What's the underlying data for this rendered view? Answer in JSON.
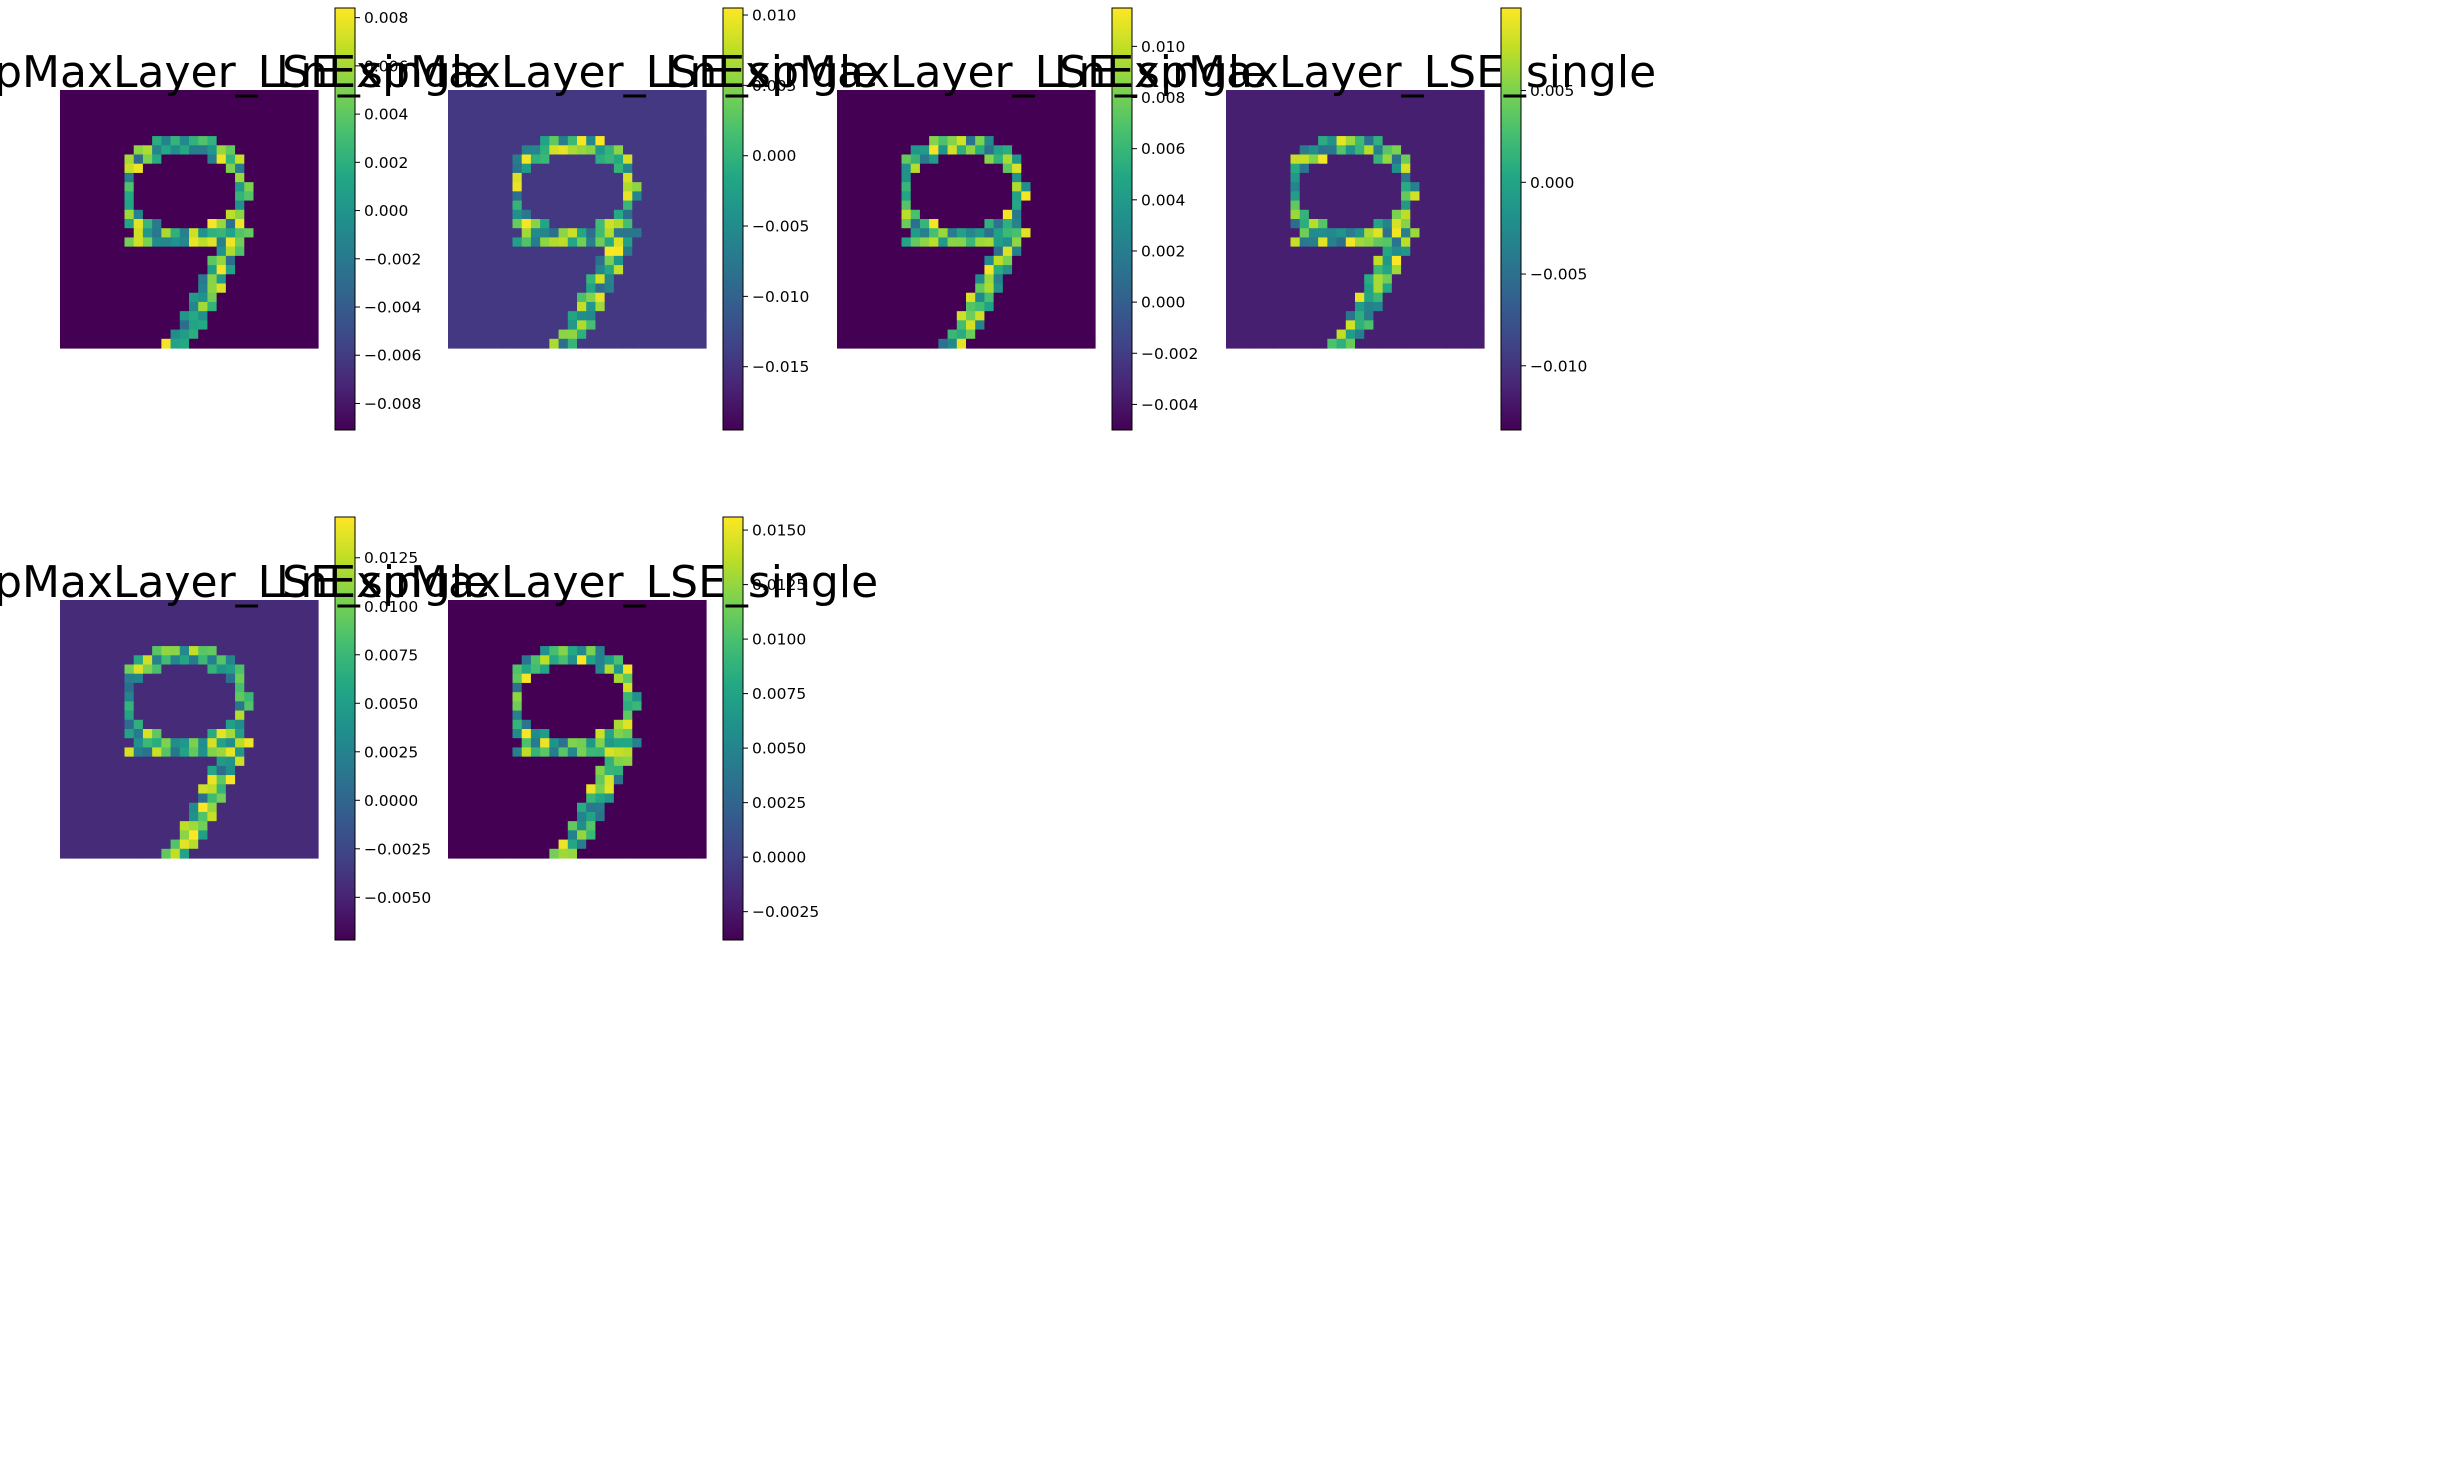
{
  "chart_data": [
    {
      "type": "heatmap",
      "title": "LnExpMaxLayer_LSE_single",
      "cmap": "viridis",
      "vmin": -0.0091,
      "vmax": 0.0084,
      "bg": -0.0091,
      "colorbar_ticks": [
        0.008,
        0.006,
        0.004,
        0.002,
        0.0,
        -0.002,
        -0.004,
        -0.006,
        -0.008
      ],
      "colorbar_labels": [
        "0.008",
        "0.006",
        "0.004",
        "0.002",
        "0.000",
        "−0.002",
        "−0.004",
        "−0.006",
        "−0.008"
      ]
    },
    {
      "type": "heatmap",
      "title": "LnExpMaxLayer_LSE_single",
      "cmap": "viridis",
      "vmin": -0.0195,
      "vmax": 0.0105,
      "bg": -0.0145,
      "colorbar_ticks": [
        0.01,
        0.005,
        0.0,
        -0.005,
        -0.01,
        -0.015
      ],
      "colorbar_labels": [
        "0.010",
        "0.005",
        "0.000",
        "−0.005",
        "−0.010",
        "−0.015"
      ]
    },
    {
      "type": "heatmap",
      "title": "LnExpMaxLayer_LSE_single",
      "cmap": "viridis",
      "vmin": -0.005,
      "vmax": 0.0115,
      "bg": -0.005,
      "colorbar_ticks": [
        0.01,
        0.008,
        0.006,
        0.004,
        0.002,
        0.0,
        -0.002,
        -0.004
      ],
      "colorbar_labels": [
        "0.010",
        "0.008",
        "0.006",
        "0.004",
        "0.002",
        "0.000",
        "−0.002",
        "−0.004"
      ]
    },
    {
      "type": "heatmap",
      "title": "LnExpMaxLayer_LSE_single",
      "cmap": "viridis",
      "vmin": -0.0135,
      "vmax": 0.0095,
      "bg": -0.0115,
      "colorbar_ticks": [
        0.005,
        0.0,
        -0.005,
        -0.01
      ],
      "colorbar_labels": [
        "0.005",
        "0.000",
        "−0.005",
        "−0.010"
      ]
    },
    {
      "type": "heatmap",
      "title": "LnExpMaxLayer_LSE_single",
      "cmap": "viridis",
      "vmin": -0.0072,
      "vmax": 0.0146,
      "bg": -0.0045,
      "colorbar_ticks": [
        0.0125,
        0.01,
        0.0075,
        0.005,
        0.0025,
        0.0,
        -0.0025,
        -0.005
      ],
      "colorbar_labels": [
        "0.0125",
        "0.0100",
        "0.0075",
        "0.0050",
        "0.0025",
        "0.0000",
        "−0.0025",
        "−0.0050"
      ]
    },
    {
      "type": "heatmap",
      "title": "LnExpMaxLayer_LSE_single",
      "cmap": "viridis",
      "vmin": -0.0038,
      "vmax": 0.0156,
      "bg": -0.0038,
      "colorbar_ticks": [
        0.015,
        0.0125,
        0.01,
        0.0075,
        0.005,
        0.0025,
        0.0,
        -0.0025
      ],
      "colorbar_labels": [
        "0.0150",
        "0.0125",
        "0.0100",
        "0.0075",
        "0.0050",
        "0.0025",
        "0.0000",
        "−0.0025"
      ]
    }
  ]
}
